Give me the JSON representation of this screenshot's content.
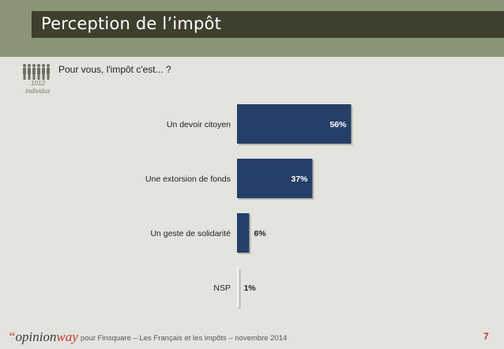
{
  "header": {
    "title": "Perception de l’impôt"
  },
  "sample": {
    "n": "1012",
    "unit": "individus"
  },
  "question": "Pour vous, l'impôt c'est... ?",
  "chart_data": {
    "type": "bar",
    "orientation": "horizontal",
    "categories": [
      "Un devoir citoyen",
      "Une extorsion de fonds",
      "Un geste de solidarité",
      "NSP"
    ],
    "values": [
      56,
      37,
      6,
      1
    ],
    "value_labels": [
      "56%",
      "37%",
      "6%",
      "1%"
    ],
    "unit": "%",
    "xlim": [
      0,
      100
    ],
    "bar_color": "#263f68",
    "grid": false,
    "legend": "none"
  },
  "footer": {
    "logo_quote": "“",
    "logo_opinion": "opinion",
    "logo_way": "way",
    "text": "pour Finsquare – Les Français et les impôts – novembre 2014",
    "page": "7"
  },
  "colors": {
    "background": "#e3e4de",
    "header_band": "#8a9478",
    "title_bar": "#3f3f2d",
    "accent": "#c0392b"
  }
}
